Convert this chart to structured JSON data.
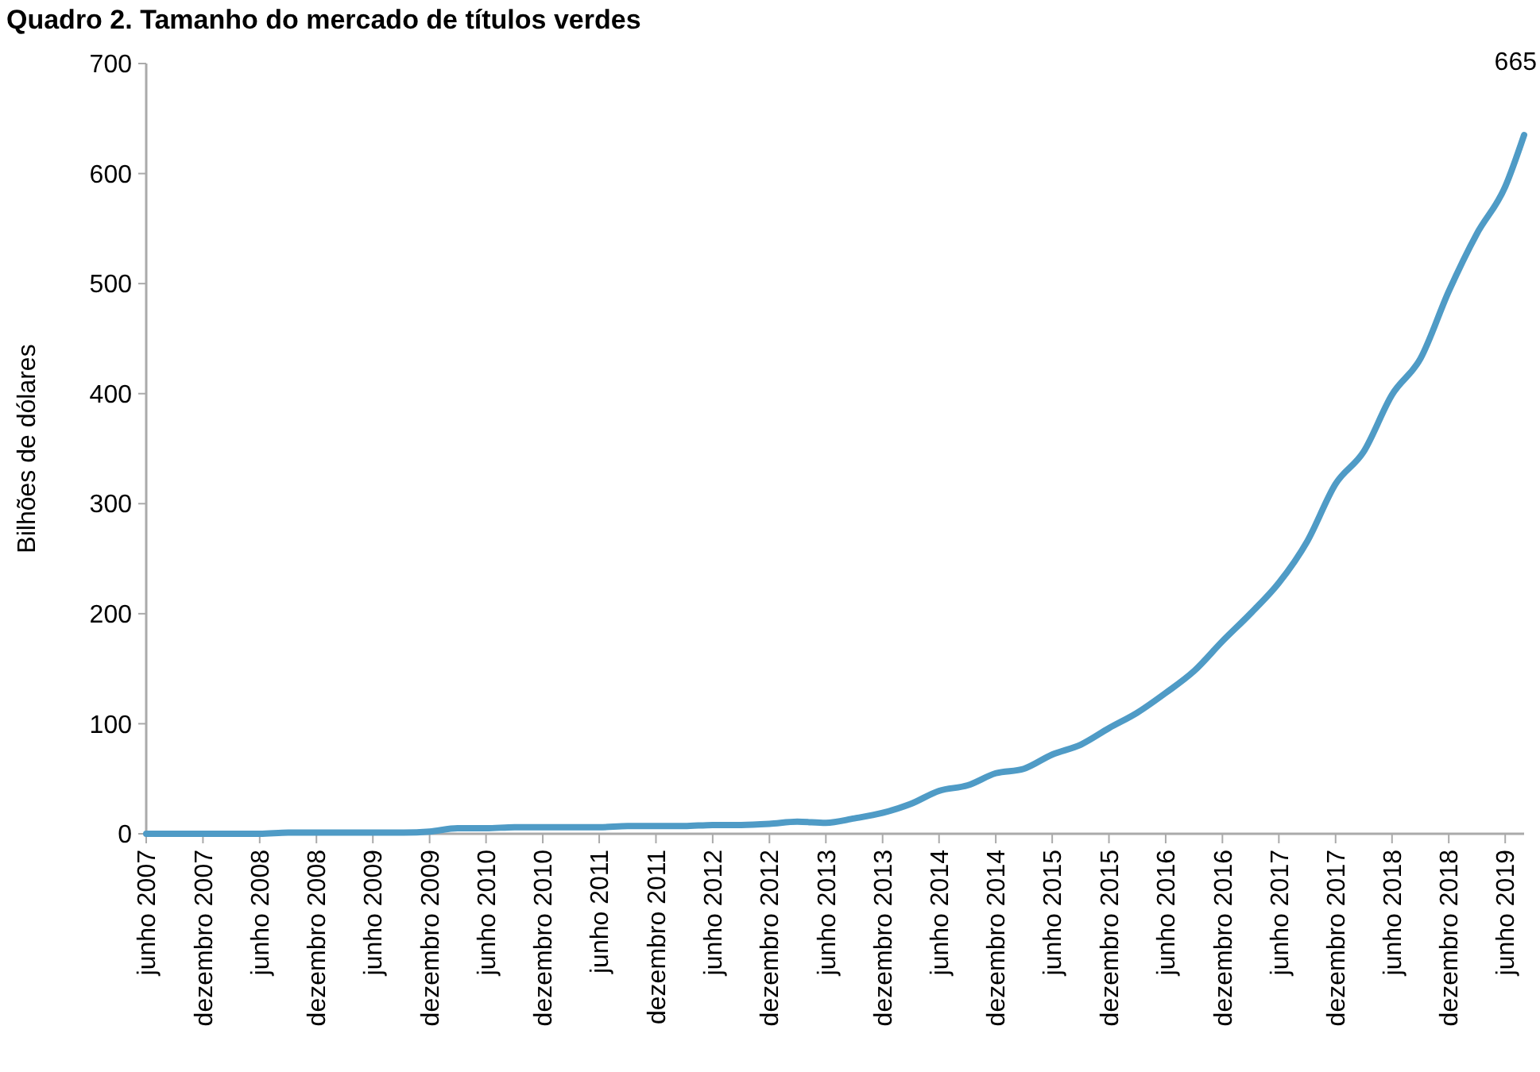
{
  "chart_data": {
    "type": "line",
    "title": "Quadro 2. Tamanho do mercado de títulos verdes",
    "ylabel": "Bilhões de dólares",
    "annotations": [
      "665"
    ],
    "x": [
      "2007-06",
      "2007-09",
      "2007-12",
      "2008-03",
      "2008-06",
      "2008-09",
      "2008-12",
      "2009-03",
      "2009-06",
      "2009-09",
      "2009-12",
      "2010-03",
      "2010-06",
      "2010-09",
      "2010-12",
      "2011-03",
      "2011-06",
      "2011-09",
      "2011-12",
      "2012-03",
      "2012-06",
      "2012-09",
      "2012-12",
      "2013-03",
      "2013-06",
      "2013-09",
      "2013-12",
      "2014-03",
      "2014-06",
      "2014-09",
      "2014-12",
      "2015-03",
      "2015-06",
      "2015-09",
      "2015-12",
      "2016-03",
      "2016-06",
      "2016-09",
      "2016-12",
      "2017-03",
      "2017-06",
      "2017-09",
      "2017-12",
      "2018-03",
      "2018-06",
      "2018-09",
      "2018-12",
      "2019-03",
      "2019-06",
      "2019-08"
    ],
    "series": [
      {
        "color": "#4f9bc6",
        "values": [
          0,
          0,
          0,
          0,
          0,
          1,
          1,
          1,
          1,
          1,
          2,
          5,
          5,
          6,
          6,
          6,
          6,
          7,
          7,
          7,
          8,
          8,
          9,
          11,
          10,
          14,
          19,
          27,
          39,
          44,
          55,
          59,
          72,
          81,
          96,
          110,
          128,
          148,
          175,
          200,
          228,
          266,
          318,
          347,
          399,
          432,
          493,
          545,
          588,
          635
        ]
      }
    ],
    "xlim": [
      "2007-06",
      "2019-08"
    ],
    "xticks": [
      {
        "value": "2007-06",
        "label": "junho 2007"
      },
      {
        "value": "2007-12",
        "label": "dezembro 2007"
      },
      {
        "value": "2008-06",
        "label": "junho 2008"
      },
      {
        "value": "2008-12",
        "label": "dezembro 2008"
      },
      {
        "value": "2009-06",
        "label": "junho 2009"
      },
      {
        "value": "2009-12",
        "label": "dezembro 2009"
      },
      {
        "value": "2010-06",
        "label": "junho 2010"
      },
      {
        "value": "2010-12",
        "label": "dezembro 2010"
      },
      {
        "value": "2011-06",
        "label": "junho 2011"
      },
      {
        "value": "2011-12",
        "label": "dezembro 2011"
      },
      {
        "value": "2012-06",
        "label": "junho 2012"
      },
      {
        "value": "2012-12",
        "label": "dezembro 2012"
      },
      {
        "value": "2013-06",
        "label": "junho 2013"
      },
      {
        "value": "2013-12",
        "label": "dezembro 2013"
      },
      {
        "value": "2014-06",
        "label": "junho 2014"
      },
      {
        "value": "2014-12",
        "label": "dezembro 2014"
      },
      {
        "value": "2015-06",
        "label": "junho 2015"
      },
      {
        "value": "2015-12",
        "label": "dezembro 2015"
      },
      {
        "value": "2016-06",
        "label": "junho 2016"
      },
      {
        "value": "2016-12",
        "label": "dezembro 2016"
      },
      {
        "value": "2017-06",
        "label": "junho 2017"
      },
      {
        "value": "2017-12",
        "label": "dezembro 2017"
      },
      {
        "value": "2018-06",
        "label": "junho 2018"
      },
      {
        "value": "2018-12",
        "label": "dezembro 2018"
      },
      {
        "value": "2019-06",
        "label": "junho 2019"
      }
    ],
    "ylim": [
      0,
      700
    ],
    "yticks": [
      0,
      100,
      200,
      300,
      400,
      500,
      600,
      700
    ],
    "grid": false,
    "marker": "none",
    "line_style": "solid"
  }
}
